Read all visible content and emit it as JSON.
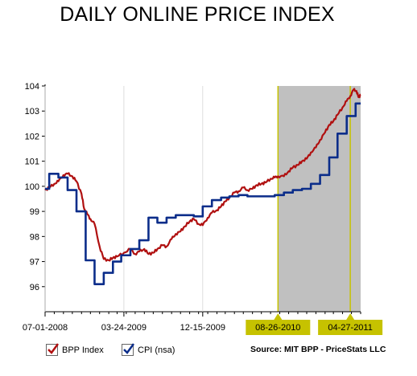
{
  "chart_data": {
    "type": "line",
    "title": "DAILY ONLINE PRICE INDEX",
    "x_range": [
      "07-01-2008",
      "06-01-2011"
    ],
    "ylim": [
      95,
      104
    ],
    "y_ticks": [
      96,
      97,
      98,
      99,
      100,
      101,
      102,
      103,
      104
    ],
    "x_tick_labels": [
      "07-01-2008",
      "03-24-2009",
      "12-15-2009"
    ],
    "highlight_period": {
      "start": "08-26-2010",
      "end": "04-27-2011",
      "start_label": "08-26-2010",
      "end_label": "04-27-2011",
      "fill": "#c0c0c0",
      "label_bg": "#c6c200"
    },
    "grid": false,
    "legend_position": "bottom-left",
    "series": [
      {
        "name": "BPP Index",
        "color": "#b01010",
        "x": [
          "2008-07-01",
          "2008-07-15",
          "2008-08-01",
          "2008-08-15",
          "2008-09-01",
          "2008-09-15",
          "2008-10-01",
          "2008-10-15",
          "2008-11-01",
          "2008-11-10",
          "2008-11-20",
          "2008-12-01",
          "2008-12-15",
          "2009-01-01",
          "2009-01-15",
          "2009-02-01",
          "2009-02-15",
          "2009-03-01",
          "2009-03-24",
          "2009-04-15",
          "2009-05-01",
          "2009-05-15",
          "2009-06-01",
          "2009-06-15",
          "2009-07-01",
          "2009-07-15",
          "2009-08-01",
          "2009-08-15",
          "2009-09-01",
          "2009-09-15",
          "2009-10-01",
          "2009-10-15",
          "2009-11-01",
          "2009-11-15",
          "2009-12-01",
          "2009-12-15",
          "2010-01-01",
          "2010-01-15",
          "2010-02-01",
          "2010-02-15",
          "2010-03-01",
          "2010-03-15",
          "2010-04-01",
          "2010-04-15",
          "2010-05-01",
          "2010-05-15",
          "2010-06-01",
          "2010-06-15",
          "2010-07-01",
          "2010-07-15",
          "2010-08-01",
          "2010-08-15",
          "2010-08-26",
          "2010-09-15",
          "2010-10-01",
          "2010-10-15",
          "2010-11-01",
          "2010-11-15",
          "2010-12-01",
          "2010-12-15",
          "2011-01-01",
          "2011-01-15",
          "2011-02-01",
          "2011-02-15",
          "2011-03-01",
          "2011-03-15",
          "2011-04-01",
          "2011-04-15",
          "2011-04-27",
          "2011-05-08",
          "2011-05-18",
          "2011-05-25",
          "2011-06-01"
        ],
        "values": [
          99.85,
          99.95,
          100.1,
          100.2,
          100.45,
          100.5,
          100.4,
          100.2,
          99.7,
          99.1,
          98.9,
          98.7,
          98.5,
          97.6,
          97.1,
          97.05,
          97.15,
          97.2,
          97.35,
          97.5,
          97.3,
          97.4,
          97.5,
          97.3,
          97.35,
          97.5,
          97.65,
          97.6,
          97.9,
          98.1,
          98.2,
          98.4,
          98.6,
          98.7,
          98.5,
          98.45,
          98.75,
          98.95,
          99.05,
          99.2,
          99.4,
          99.55,
          99.75,
          99.8,
          99.95,
          99.85,
          99.9,
          100.05,
          100.1,
          100.15,
          100.3,
          100.35,
          100.4,
          100.4,
          100.6,
          100.75,
          100.85,
          101.0,
          101.1,
          101.35,
          101.55,
          101.85,
          102.15,
          102.45,
          102.6,
          102.85,
          103.15,
          103.4,
          103.6,
          103.85,
          103.8,
          103.55,
          103.65
        ]
      },
      {
        "name": "CPI (nsa)",
        "color": "#0b2d8a",
        "step": true,
        "x": [
          "2008-07-01",
          "2008-07-15",
          "2008-08-15",
          "2008-09-15",
          "2008-10-15",
          "2008-11-15",
          "2008-12-15",
          "2009-01-15",
          "2009-02-15",
          "2009-03-15",
          "2009-04-15",
          "2009-05-15",
          "2009-06-15",
          "2009-07-15",
          "2009-08-15",
          "2009-09-15",
          "2009-10-15",
          "2009-11-15",
          "2009-12-15",
          "2010-01-15",
          "2010-02-15",
          "2010-03-15",
          "2010-04-15",
          "2010-05-15",
          "2010-06-15",
          "2010-07-15",
          "2010-08-15",
          "2010-09-15",
          "2010-10-15",
          "2010-11-15",
          "2010-12-15",
          "2011-01-15",
          "2011-02-15",
          "2011-03-15",
          "2011-04-15",
          "2011-05-15",
          "2011-06-01"
        ],
        "values": [
          99.9,
          100.5,
          100.35,
          99.85,
          99.0,
          97.05,
          96.1,
          96.55,
          97.0,
          97.25,
          97.5,
          97.85,
          98.75,
          98.55,
          98.75,
          98.85,
          98.85,
          98.8,
          99.2,
          99.45,
          99.55,
          99.6,
          99.65,
          99.6,
          99.6,
          99.6,
          99.65,
          99.75,
          99.85,
          99.9,
          100.1,
          100.45,
          101.15,
          102.1,
          102.8,
          103.3,
          103.3
        ]
      }
    ],
    "source": "Source: MIT BPP - PriceStats LLC"
  },
  "legend": {
    "items": [
      {
        "label": "BPP Index",
        "color": "#b01010",
        "icon": "checkmark-icon"
      },
      {
        "label": "CPI (nsa)",
        "color": "#0b2d8a",
        "icon": "checkmark-icon"
      }
    ]
  }
}
